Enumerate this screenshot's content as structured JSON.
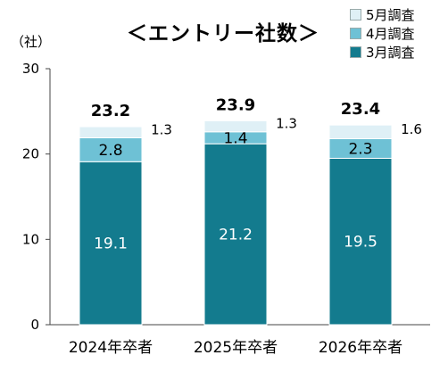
{
  "chart_data": {
    "type": "bar",
    "stacked": true,
    "title": "＜エントリー社数＞",
    "unit_label": "（社）",
    "categories": [
      "2024年卒者",
      "2025年卒者",
      "2026年卒者"
    ],
    "series": [
      {
        "name": "3月調査",
        "values": [
          19.1,
          21.2,
          19.5
        ],
        "color": "#137b8e"
      },
      {
        "name": "4月調査",
        "values": [
          2.8,
          1.4,
          2.3
        ],
        "color": "#6ec1d5"
      },
      {
        "name": "5月調査",
        "values": [
          1.3,
          1.3,
          1.6
        ],
        "color": "#dff0f6"
      }
    ],
    "totals": [
      23.2,
      23.9,
      23.4
    ],
    "value_labels": [
      [
        "19.1",
        "21.2",
        "19.5"
      ],
      [
        "2.8",
        "1.4",
        "2.3"
      ],
      [
        "1.3",
        "1.3",
        "1.6"
      ]
    ],
    "total_labels": [
      "23.2",
      "23.9",
      "23.4"
    ],
    "ylim": [
      0,
      30
    ],
    "yticks": [
      0,
      10,
      20,
      30
    ],
    "ytick_labels": [
      "0",
      "10",
      "20",
      "30"
    ],
    "legend_position": "top-right"
  }
}
